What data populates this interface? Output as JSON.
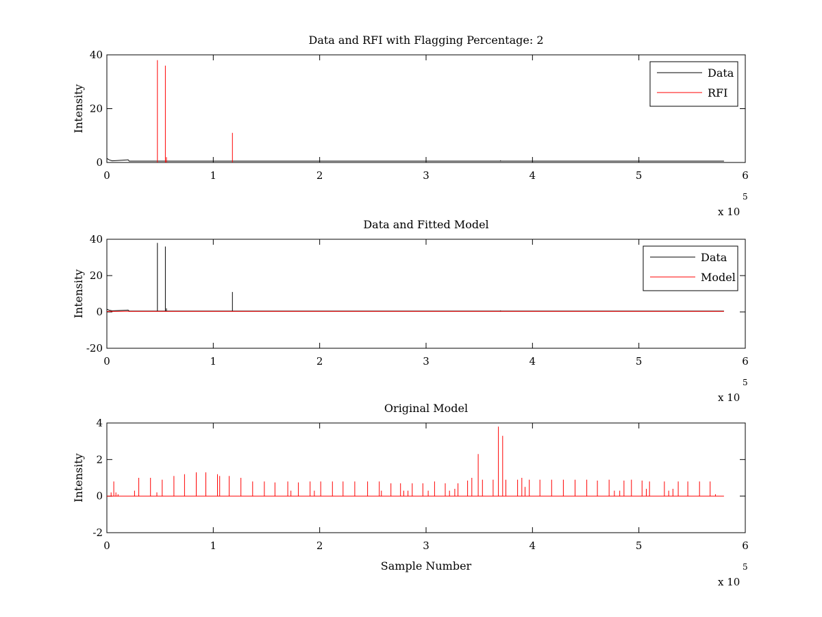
{
  "chart_data": [
    {
      "type": "line",
      "title": "Data and RFI with Flagging Percentage: 2",
      "xlabel": "",
      "ylabel": "Intensity",
      "xlim": [
        0,
        600000
      ],
      "ylim": [
        0,
        40
      ],
      "xticks": [
        0,
        1,
        2,
        3,
        4,
        5,
        6
      ],
      "yticks": [
        0,
        20,
        40
      ],
      "x_multiplier_label": "x 10",
      "x_multiplier_exponent": "5",
      "legend_position": "top-right",
      "series": [
        {
          "name": "Data",
          "color": "#000000",
          "baseline": 0.5,
          "points": [
            [
              0,
              1.5
            ],
            [
              2000,
              1.0
            ],
            [
              5000,
              0.6
            ],
            [
              20000,
              1.0
            ],
            [
              21000,
              0.5
            ]
          ],
          "spikes": [
            [
              47500,
              0.5
            ],
            [
              55000,
              0.5
            ],
            [
              118000,
              0.5
            ],
            [
              200000,
              0.4
            ],
            [
              300000,
              0.4
            ],
            [
              370000,
              0.8
            ],
            [
              400000,
              0.4
            ],
            [
              500000,
              0.4
            ],
            [
              560000,
              0.4
            ]
          ],
          "x_end": 580000
        },
        {
          "name": "RFI",
          "color": "#ff0000",
          "baseline": null,
          "points": [],
          "spikes": [
            [
              47500,
              38
            ],
            [
              55000,
              36
            ],
            [
              56000,
              2
            ],
            [
              118000,
              11
            ]
          ],
          "x_end": 580000
        }
      ]
    },
    {
      "type": "line",
      "title": "Data and Fitted Model",
      "xlabel": "",
      "ylabel": "Intensity",
      "xlim": [
        0,
        600000
      ],
      "ylim": [
        -20,
        40
      ],
      "xticks": [
        0,
        1,
        2,
        3,
        4,
        5,
        6
      ],
      "yticks": [
        -20,
        0,
        20,
        40
      ],
      "x_multiplier_label": "x 10",
      "x_multiplier_exponent": "5",
      "legend_position": "top-right",
      "series": [
        {
          "name": "Data",
          "color": "#000000",
          "baseline": 0.5,
          "points": [
            [
              0,
              1.5
            ],
            [
              2000,
              1.0
            ],
            [
              5000,
              0.6
            ],
            [
              20000,
              1.0
            ],
            [
              21000,
              0.5
            ]
          ],
          "spikes": [
            [
              47500,
              38
            ],
            [
              55000,
              36
            ],
            [
              56000,
              2
            ],
            [
              118000,
              11
            ],
            [
              200000,
              0.5
            ],
            [
              300000,
              0.5
            ],
            [
              370000,
              0.8
            ],
            [
              400000,
              0.5
            ],
            [
              500000,
              0.5
            ],
            [
              560000,
              0.5
            ]
          ],
          "x_end": 580000
        },
        {
          "name": "Model",
          "color": "#ff0000",
          "baseline": 0.3,
          "points": [],
          "spikes": [],
          "x_end": 580000
        }
      ]
    },
    {
      "type": "line",
      "title": "Original Model",
      "xlabel": "Sample Number",
      "ylabel": "Intensity",
      "xlim": [
        0,
        600000
      ],
      "ylim": [
        -2,
        4
      ],
      "xticks": [
        0,
        1,
        2,
        3,
        4,
        5,
        6
      ],
      "yticks": [
        -2,
        0,
        2,
        4
      ],
      "x_multiplier_label": "x 10",
      "x_multiplier_exponent": "5",
      "legend_position": "none",
      "series": [
        {
          "name": "",
          "color": "#ff0000",
          "baseline": 0.0,
          "points": [],
          "spikes": [
            [
              4000,
              0.2
            ],
            [
              6500,
              0.8
            ],
            [
              8500,
              0.2
            ],
            [
              10500,
              0.1
            ],
            [
              26000,
              0.3
            ],
            [
              30000,
              1.0
            ],
            [
              41000,
              1.0
            ],
            [
              47000,
              0.2
            ],
            [
              52000,
              0.9
            ],
            [
              63000,
              1.1
            ],
            [
              73000,
              1.2
            ],
            [
              84000,
              1.3
            ],
            [
              93000,
              1.3
            ],
            [
              104000,
              1.2
            ],
            [
              106000,
              1.1
            ],
            [
              115000,
              1.1
            ],
            [
              126000,
              1.0
            ],
            [
              137000,
              0.8
            ],
            [
              148000,
              0.8
            ],
            [
              158000,
              0.75
            ],
            [
              170000,
              0.8
            ],
            [
              173000,
              0.3
            ],
            [
              180000,
              0.75
            ],
            [
              191000,
              0.8
            ],
            [
              195000,
              0.3
            ],
            [
              201000,
              0.8
            ],
            [
              212000,
              0.8
            ],
            [
              222000,
              0.8
            ],
            [
              233000,
              0.8
            ],
            [
              245000,
              0.8
            ],
            [
              256000,
              0.8
            ],
            [
              258000,
              0.3
            ],
            [
              267000,
              0.7
            ],
            [
              276000,
              0.7
            ],
            [
              279000,
              0.3
            ],
            [
              283000,
              0.3
            ],
            [
              287000,
              0.7
            ],
            [
              297000,
              0.7
            ],
            [
              302000,
              0.3
            ],
            [
              308000,
              0.8
            ],
            [
              318000,
              0.7
            ],
            [
              322000,
              0.3
            ],
            [
              327000,
              0.4
            ],
            [
              330000,
              0.7
            ],
            [
              339000,
              0.85
            ],
            [
              343000,
              1.0
            ],
            [
              349000,
              2.3
            ],
            [
              353000,
              0.9
            ],
            [
              363000,
              0.9
            ],
            [
              368000,
              3.8
            ],
            [
              372000,
              3.3
            ],
            [
              375000,
              0.9
            ],
            [
              386000,
              0.9
            ],
            [
              390000,
              1.0
            ],
            [
              393000,
              0.5
            ],
            [
              397000,
              0.9
            ],
            [
              407000,
              0.9
            ],
            [
              418000,
              0.9
            ],
            [
              429000,
              0.9
            ],
            [
              440000,
              0.9
            ],
            [
              451000,
              0.9
            ],
            [
              461000,
              0.85
            ],
            [
              472000,
              0.9
            ],
            [
              477000,
              0.3
            ],
            [
              482000,
              0.3
            ],
            [
              486000,
              0.85
            ],
            [
              493000,
              0.9
            ],
            [
              503000,
              0.85
            ],
            [
              507000,
              0.4
            ],
            [
              510000,
              0.8
            ],
            [
              524000,
              0.8
            ],
            [
              528000,
              0.3
            ],
            [
              532000,
              0.4
            ],
            [
              537000,
              0.8
            ],
            [
              546000,
              0.8
            ],
            [
              557000,
              0.8
            ],
            [
              567000,
              0.8
            ],
            [
              572000,
              0.1
            ]
          ],
          "x_end": 580000
        }
      ]
    }
  ]
}
